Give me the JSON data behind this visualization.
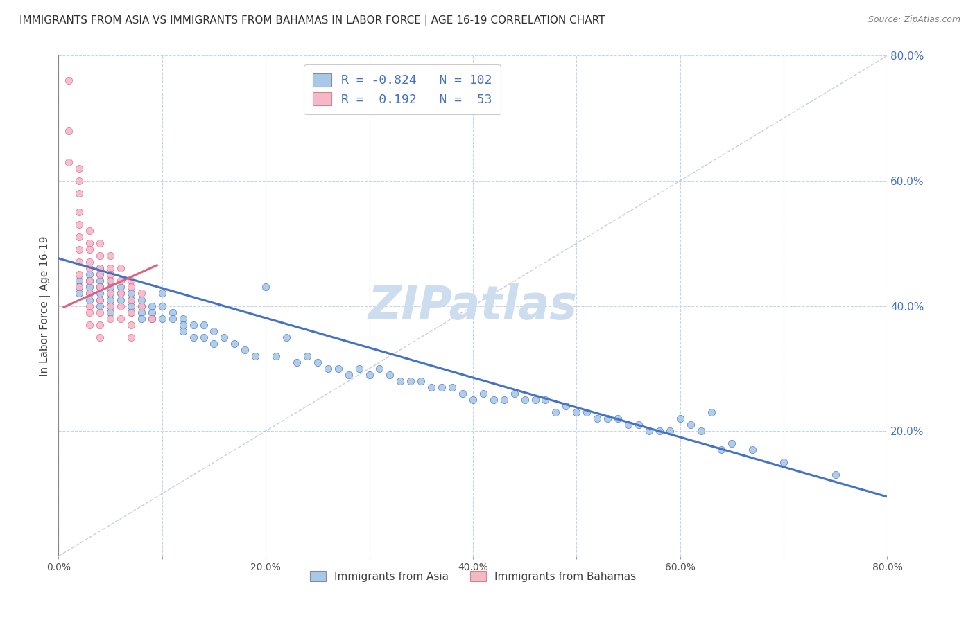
{
  "title": "IMMIGRANTS FROM ASIA VS IMMIGRANTS FROM BAHAMAS IN LABOR FORCE | AGE 16-19 CORRELATION CHART",
  "source": "Source: ZipAtlas.com",
  "ylabel_left": "In Labor Force | Age 16-19",
  "xlim": [
    0.0,
    0.8
  ],
  "ylim": [
    0.0,
    0.8
  ],
  "xticks": [
    0.0,
    0.1,
    0.2,
    0.3,
    0.4,
    0.5,
    0.6,
    0.7,
    0.8
  ],
  "yticks_right": [
    0.2,
    0.4,
    0.6,
    0.8
  ],
  "xtick_labels": [
    "0.0%",
    "",
    "20.0%",
    "",
    "40.0%",
    "",
    "60.0%",
    "",
    "80.0%"
  ],
  "ytick_right_labels": [
    "20.0%",
    "40.0%",
    "60.0%",
    "80.0%"
  ],
  "legend_R_asia": "-0.824",
  "legend_N_asia": "102",
  "legend_R_bahamas": "0.192",
  "legend_N_bahamas": "53",
  "color_asia": "#a8c8e8",
  "color_bahamas": "#f4b8c8",
  "trend_color_asia": "#4472c4",
  "trend_color_bahamas": "#e06080",
  "legend_text_color": "#4472c4",
  "watermark_color": "#ccddf0",
  "background_color": "#ffffff",
  "grid_color": "#c8d4e8",
  "title_color": "#303030",
  "source_color": "#808080",
  "asia_x": [
    0.02,
    0.02,
    0.02,
    0.03,
    0.03,
    0.03,
    0.03,
    0.03,
    0.04,
    0.04,
    0.04,
    0.04,
    0.04,
    0.04,
    0.04,
    0.05,
    0.05,
    0.05,
    0.05,
    0.05,
    0.05,
    0.06,
    0.06,
    0.06,
    0.07,
    0.07,
    0.07,
    0.07,
    0.08,
    0.08,
    0.08,
    0.08,
    0.09,
    0.09,
    0.09,
    0.1,
    0.1,
    0.1,
    0.11,
    0.11,
    0.12,
    0.12,
    0.12,
    0.13,
    0.13,
    0.14,
    0.14,
    0.15,
    0.15,
    0.16,
    0.17,
    0.18,
    0.19,
    0.2,
    0.21,
    0.22,
    0.23,
    0.24,
    0.25,
    0.26,
    0.27,
    0.28,
    0.29,
    0.3,
    0.31,
    0.32,
    0.33,
    0.34,
    0.35,
    0.36,
    0.37,
    0.38,
    0.39,
    0.4,
    0.41,
    0.42,
    0.43,
    0.44,
    0.45,
    0.46,
    0.47,
    0.48,
    0.49,
    0.5,
    0.51,
    0.52,
    0.53,
    0.54,
    0.55,
    0.56,
    0.57,
    0.58,
    0.59,
    0.6,
    0.61,
    0.62,
    0.63,
    0.64,
    0.65,
    0.67,
    0.7,
    0.75
  ],
  "asia_y": [
    0.44,
    0.43,
    0.42,
    0.45,
    0.44,
    0.43,
    0.42,
    0.41,
    0.46,
    0.45,
    0.44,
    0.43,
    0.42,
    0.41,
    0.4,
    0.44,
    0.43,
    0.42,
    0.41,
    0.4,
    0.39,
    0.43,
    0.42,
    0.41,
    0.42,
    0.41,
    0.4,
    0.39,
    0.41,
    0.4,
    0.39,
    0.38,
    0.4,
    0.39,
    0.38,
    0.42,
    0.4,
    0.38,
    0.39,
    0.38,
    0.38,
    0.37,
    0.36,
    0.37,
    0.35,
    0.37,
    0.35,
    0.36,
    0.34,
    0.35,
    0.34,
    0.33,
    0.32,
    0.43,
    0.32,
    0.35,
    0.31,
    0.32,
    0.31,
    0.3,
    0.3,
    0.29,
    0.3,
    0.29,
    0.3,
    0.29,
    0.28,
    0.28,
    0.28,
    0.27,
    0.27,
    0.27,
    0.26,
    0.25,
    0.26,
    0.25,
    0.25,
    0.26,
    0.25,
    0.25,
    0.25,
    0.23,
    0.24,
    0.23,
    0.23,
    0.22,
    0.22,
    0.22,
    0.21,
    0.21,
    0.2,
    0.2,
    0.2,
    0.22,
    0.21,
    0.2,
    0.23,
    0.17,
    0.18,
    0.17,
    0.15,
    0.13
  ],
  "bahamas_x": [
    0.01,
    0.01,
    0.01,
    0.02,
    0.02,
    0.02,
    0.02,
    0.02,
    0.02,
    0.02,
    0.02,
    0.02,
    0.02,
    0.03,
    0.03,
    0.03,
    0.03,
    0.03,
    0.03,
    0.03,
    0.03,
    0.03,
    0.03,
    0.04,
    0.04,
    0.04,
    0.04,
    0.04,
    0.04,
    0.04,
    0.04,
    0.04,
    0.05,
    0.05,
    0.05,
    0.05,
    0.05,
    0.05,
    0.05,
    0.06,
    0.06,
    0.06,
    0.06,
    0.06,
    0.07,
    0.07,
    0.07,
    0.07,
    0.07,
    0.07,
    0.08,
    0.08,
    0.09
  ],
  "bahamas_y": [
    0.76,
    0.68,
    0.63,
    0.62,
    0.6,
    0.58,
    0.55,
    0.53,
    0.51,
    0.49,
    0.47,
    0.45,
    0.43,
    0.52,
    0.5,
    0.49,
    0.47,
    0.46,
    0.44,
    0.42,
    0.4,
    0.39,
    0.37,
    0.5,
    0.48,
    0.46,
    0.45,
    0.43,
    0.41,
    0.39,
    0.37,
    0.35,
    0.48,
    0.46,
    0.45,
    0.44,
    0.42,
    0.4,
    0.38,
    0.46,
    0.44,
    0.42,
    0.4,
    0.38,
    0.44,
    0.43,
    0.41,
    0.39,
    0.37,
    0.35,
    0.42,
    0.4,
    0.38
  ],
  "asia_trend_x": [
    0.0,
    0.8
  ],
  "asia_trend_y": [
    0.476,
    0.095
  ],
  "bahamas_trend_x": [
    0.005,
    0.095
  ],
  "bahamas_trend_y": [
    0.398,
    0.465
  ],
  "diag_line_x": [
    0.0,
    0.8
  ],
  "diag_line_y": [
    0.0,
    0.8
  ]
}
